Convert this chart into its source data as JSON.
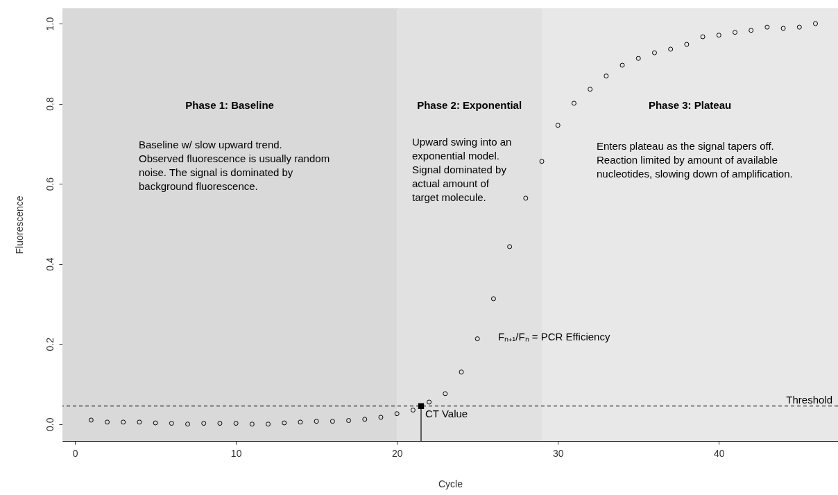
{
  "chart_data": {
    "type": "scatter",
    "xlabel": "Cycle",
    "ylabel": "Fluorescence",
    "xlim": [
      -0.78,
      47.4
    ],
    "ylim": [
      -0.042,
      1.038
    ],
    "xticks": [
      0,
      10,
      20,
      30,
      40
    ],
    "yticks": [
      {
        "value": 0,
        "label": "0.0"
      },
      0.2,
      0.4,
      0.6,
      0.8,
      {
        "value": 1,
        "label": "1.0"
      }
    ],
    "marker": "circle",
    "series": [
      {
        "color": "#000000",
        "x": [
          1,
          2,
          3,
          4,
          5,
          6,
          7,
          8,
          9,
          10,
          11,
          12,
          13,
          14,
          15,
          16,
          17,
          18,
          19,
          20,
          21,
          22,
          23,
          24,
          25,
          26,
          27,
          28,
          29,
          30,
          31,
          32,
          33,
          34,
          35,
          36,
          37,
          38,
          39,
          40,
          41,
          42,
          43,
          44,
          45,
          46
        ],
        "values": [
          0.01,
          0.005,
          0.005,
          0.005,
          0.003,
          0.002,
          0.0,
          0.002,
          0.002,
          0.002,
          0.0,
          0.0,
          0.003,
          0.005,
          0.007,
          0.007,
          0.009,
          0.012,
          0.017,
          0.026,
          0.035,
          0.055,
          0.076,
          0.13,
          0.213,
          0.313,
          0.443,
          0.564,
          0.656,
          0.746,
          0.801,
          0.836,
          0.869,
          0.896,
          0.913,
          0.927,
          0.936,
          0.948,
          0.967,
          0.971,
          0.978,
          0.983,
          0.991,
          0.988,
          0.991,
          1.0
        ]
      },
      {
        "type": "lollipop",
        "marker": "square",
        "color": "#000000",
        "x": [
          21.5
        ],
        "values": [
          0.045
        ]
      }
    ],
    "bands": [
      {
        "axis": "x",
        "from": -0.78,
        "to": 20,
        "label": "Phase 1: Baseline",
        "color": "#d9d9d9"
      },
      {
        "axis": "x",
        "from": 20,
        "to": 29,
        "label": "Phase 2: Exponential",
        "color": "#e1e1e1"
      },
      {
        "axis": "x",
        "from": 29,
        "to": 47.4,
        "label": "Phase 3: Plateau",
        "color": "#e8e8e8"
      }
    ],
    "ref_lines": [
      {
        "axis": "y",
        "value": 0.045,
        "label": "Threshold",
        "line_style": "dashed",
        "color": "#000000"
      }
    ],
    "annotations": [
      "Baseline w/ slow upward trend.\n\nObserved fluorescence is usually random\nnoise. The signal is dominated by\nbackground fluorescence.",
      "Upward swing into an\nexponential model.\n\nSignal dominated by\nactual amount of\ntarget molecule.",
      "Enters plateau as the signal tapers off.\n\nReaction limited by amount of available\nnucleotides, slowing down of amplification.",
      {
        "text": "CT Value",
        "x": 21.5,
        "y": 0.045
      },
      "Fₙ₊₁/Fₙ = PCR Efficiency"
    ]
  }
}
